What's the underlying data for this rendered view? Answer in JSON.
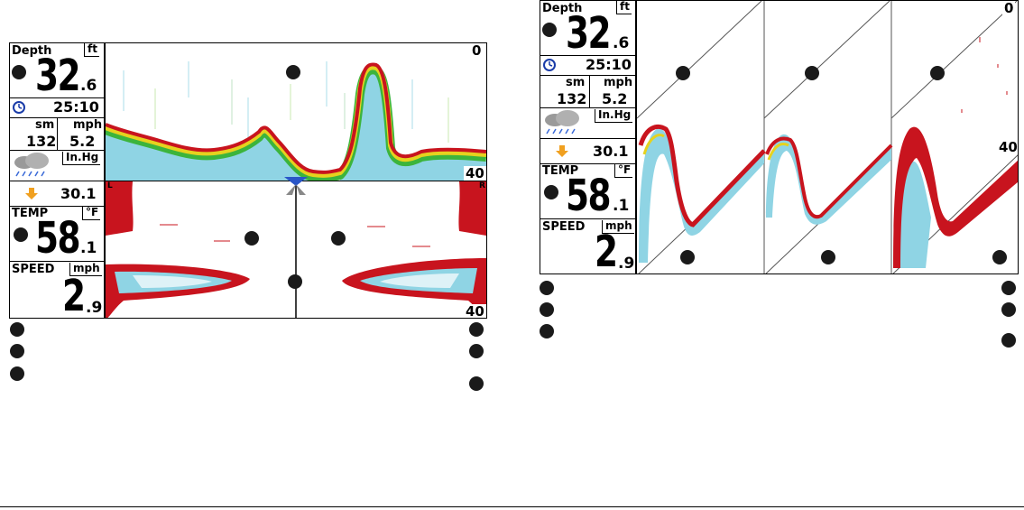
{
  "left_screen": {
    "depth": {
      "label": "Depth",
      "unit": "ft",
      "int": "32",
      "dec": ".6"
    },
    "timer": "25:10",
    "distance": {
      "unit": "sm",
      "value": "132"
    },
    "speed_small": {
      "unit": "mph",
      "value": "5.2"
    },
    "pressure": {
      "unit": "In.Hg",
      "value": "30.1"
    },
    "temp": {
      "label": "TEMP",
      "unit": "°F",
      "int": "58",
      "dec": ".1"
    },
    "speed": {
      "label": "SPEED",
      "unit": "mph",
      "int": "2",
      "dec": ".9"
    },
    "scale_top": "0",
    "scale_bottom_upper": "40",
    "scale_bottom_lower": "40",
    "side_left": "L",
    "side_right": "R"
  },
  "right_screen": {
    "depth": {
      "label": "Depth",
      "unit": "ft",
      "int": "32",
      "dec": ".6"
    },
    "timer": "25:10",
    "distance": {
      "unit": "sm",
      "value": "132"
    },
    "speed_small": {
      "unit": "mph",
      "value": "5.2"
    },
    "pressure": {
      "unit": "In.Hg",
      "value": "30.1"
    },
    "temp": {
      "label": "TEMP",
      "unit": "°F",
      "int": "58",
      "dec": ".1"
    },
    "speed": {
      "label": "SPEED",
      "unit": "mph",
      "int": "2",
      "dec": ".9"
    },
    "scale_top": "0",
    "scale_mid": "40"
  },
  "icons": {
    "clock": "clock-icon",
    "weather": "weather-cloud-icon",
    "trend": "down-arrow-icon",
    "transducer": "transducer-icon",
    "callout": "callout-dot-icon"
  },
  "colors": {
    "sonar_red": "#c8141e",
    "sonar_orange": "#f08c1e",
    "sonar_yellow": "#e6d21e",
    "sonar_green": "#3cb43c",
    "sonar_cyan": "#50c8dc",
    "trend_arrow": "#f0a020"
  }
}
